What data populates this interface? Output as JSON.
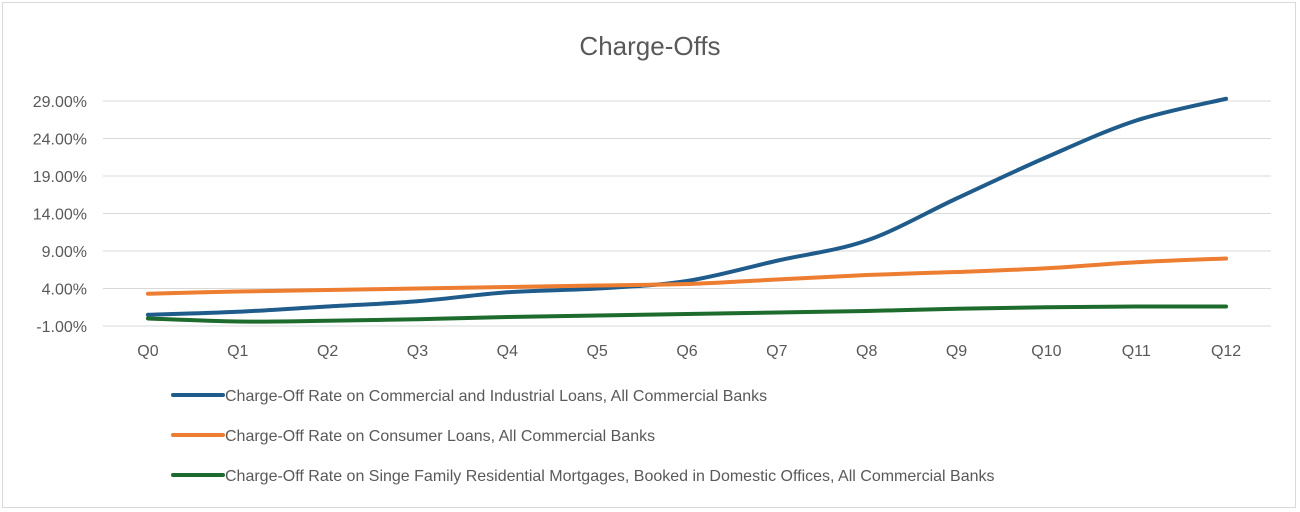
{
  "chart_data": {
    "type": "line",
    "title": "Charge-Offs",
    "xlabel": "",
    "ylabel": "",
    "categories": [
      "Q0",
      "Q1",
      "Q2",
      "Q3",
      "Q4",
      "Q5",
      "Q6",
      "Q7",
      "Q8",
      "Q9",
      "Q10",
      "Q11",
      "Q12"
    ],
    "yticks": [
      "-1.00%",
      "4.00%",
      "9.00%",
      "14.00%",
      "19.00%",
      "24.00%",
      "29.00%"
    ],
    "ylim": [
      -1,
      29
    ],
    "grid": true,
    "legend_position": "bottom",
    "series": [
      {
        "name": "Charge-Off Rate on Commercial and Industrial Loans, All Commercial Banks",
        "color": "#1f5c8b",
        "values": [
          0.5,
          0.9,
          1.6,
          2.3,
          3.5,
          4.0,
          5.0,
          7.7,
          10.4,
          16.0,
          21.5,
          26.4,
          29.3
        ]
      },
      {
        "name": "Charge-Off Rate on Consumer Loans, All Commercial Banks",
        "color": "#ed7d31",
        "values": [
          3.3,
          3.6,
          3.8,
          4.0,
          4.2,
          4.4,
          4.6,
          5.2,
          5.8,
          6.2,
          6.7,
          7.5,
          8.0
        ]
      },
      {
        "name": "Charge-Off Rate on Singe Family Residential Mortgages, Booked in Domestic Offices, All Commercial Banks",
        "color": "#1e6b2e",
        "values": [
          0.0,
          -0.4,
          -0.3,
          -0.1,
          0.2,
          0.4,
          0.6,
          0.8,
          1.0,
          1.3,
          1.5,
          1.6,
          1.6
        ]
      }
    ]
  }
}
